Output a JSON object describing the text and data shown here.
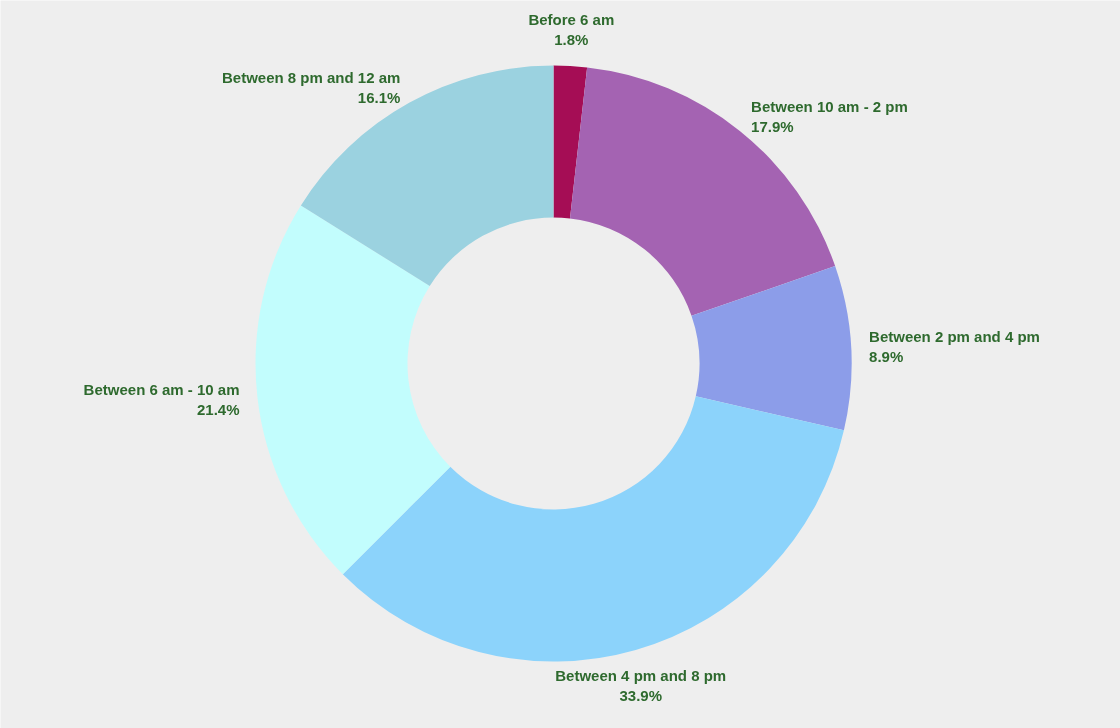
{
  "chart_data": {
    "type": "donut",
    "categories": [
      "Before 6 am",
      "Between 10 am - 2 pm",
      "Between 2 pm and 4 pm",
      "Between 4 pm and 8 pm",
      "Between 6 am - 10 am",
      "Between 8 pm and 12 am"
    ],
    "values": [
      1.8,
      17.9,
      8.9,
      33.9,
      21.4,
      16.1
    ],
    "value_labels": [
      "1.8%",
      "17.9%",
      "8.9%",
      "33.9%",
      "21.4%",
      "16.1%"
    ],
    "colors": [
      "#a50d55",
      "#a463b2",
      "#8c9de9",
      "#8cd3fb",
      "#c2fdfd",
      "#9bd2e0"
    ]
  }
}
